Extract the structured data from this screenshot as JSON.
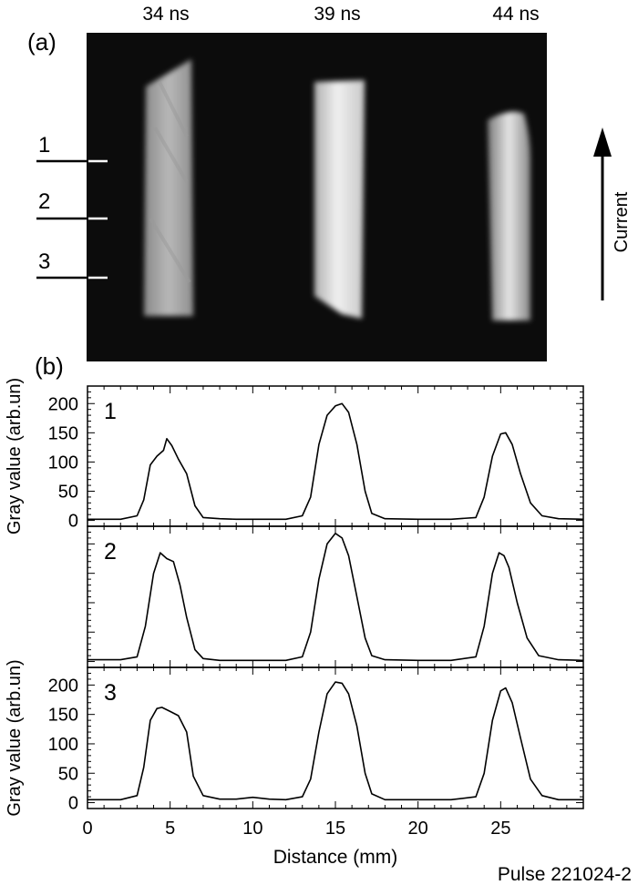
{
  "figure": {
    "panel_a_label": "(a)",
    "panel_b_label": "(b)",
    "frames": [
      {
        "time": "34 ns",
        "shape": "flat-top"
      },
      {
        "time": "39 ns",
        "shape": "flat-top"
      },
      {
        "time": "44 ns",
        "shape": "rounded-top"
      }
    ],
    "row_labels": [
      "1",
      "2",
      "3"
    ],
    "current_label": "Current",
    "footer": "Pulse 221024-2",
    "colors": {
      "background": "#000000",
      "emission": "#d8d8d8",
      "trace": "#000000",
      "frame_bg": "#0c0c0c"
    }
  },
  "chart_data": [
    {
      "type": "line",
      "panel_label": "1",
      "ylabel": "Gray value (arb.un)",
      "xlabel": "",
      "xlim": [
        0,
        30
      ],
      "ylim": [
        -10,
        230
      ],
      "xticks": [
        0,
        5,
        10,
        15,
        20,
        25
      ],
      "yticks": [
        0,
        50,
        100,
        150,
        200
      ],
      "show_yticklabels": true,
      "show_xticklabels": false,
      "series": [
        {
          "x": [
            0,
            2,
            3,
            3.4,
            3.8,
            4.2,
            4.6,
            4.8,
            5.1,
            5.5,
            6.0,
            6.5,
            7.0,
            8,
            9,
            10,
            11,
            12,
            13,
            13.5,
            14,
            14.5,
            15,
            15.4,
            15.8,
            16.3,
            16.8,
            17.2,
            18,
            20,
            22,
            23.5,
            24,
            24.5,
            25,
            25.3,
            25.7,
            26.2,
            26.8,
            27.5,
            28.5,
            30
          ],
          "y": [
            2,
            2,
            8,
            35,
            95,
            110,
            120,
            140,
            128,
            105,
            80,
            25,
            5,
            3,
            2,
            2,
            2,
            2,
            8,
            40,
            130,
            180,
            196,
            200,
            185,
            130,
            50,
            12,
            3,
            2,
            2,
            5,
            40,
            110,
            148,
            150,
            130,
            80,
            30,
            8,
            3,
            2
          ]
        }
      ]
    },
    {
      "type": "line",
      "panel_label": "2",
      "ylabel": "",
      "xlabel": "",
      "xlim": [
        0,
        30
      ],
      "ylim": [
        -10,
        230
      ],
      "xticks": [
        0,
        5,
        10,
        15,
        20,
        25
      ],
      "yticks": [
        0,
        50,
        100,
        150,
        200
      ],
      "show_yticklabels": false,
      "show_xticklabels": false,
      "series": [
        {
          "x": [
            0,
            2,
            3,
            3.5,
            4.0,
            4.4,
            4.8,
            5.2,
            5.6,
            6.0,
            6.5,
            7.0,
            8,
            10,
            12,
            13,
            13.5,
            14,
            14.5,
            15,
            15.4,
            15.8,
            16.3,
            16.8,
            17.2,
            18,
            20,
            22,
            23.5,
            24,
            24.5,
            24.9,
            25.2,
            25.5,
            26.0,
            26.6,
            27.3,
            28.5,
            30
          ],
          "y": [
            3,
            3,
            8,
            60,
            150,
            185,
            175,
            170,
            130,
            75,
            20,
            5,
            2,
            2,
            2,
            8,
            50,
            140,
            200,
            218,
            210,
            180,
            110,
            40,
            10,
            3,
            2,
            2,
            8,
            60,
            150,
            185,
            180,
            160,
            100,
            40,
            10,
            3,
            2
          ]
        }
      ]
    },
    {
      "type": "line",
      "panel_label": "3",
      "ylabel": "Gray value (arb.un)",
      "xlabel": "Distance (mm)",
      "xlim": [
        0,
        30
      ],
      "ylim": [
        -10,
        230
      ],
      "xticks": [
        0,
        5,
        10,
        15,
        20,
        25
      ],
      "yticks": [
        0,
        50,
        100,
        150,
        200
      ],
      "show_yticklabels": true,
      "show_xticklabels": true,
      "series": [
        {
          "x": [
            0,
            2,
            3,
            3.4,
            3.8,
            4.2,
            4.5,
            5.0,
            5.5,
            6.0,
            6.4,
            7.0,
            8,
            9,
            10,
            11,
            12,
            13,
            13.5,
            14,
            14.5,
            15,
            15.4,
            15.8,
            16.3,
            16.8,
            17.2,
            18,
            20,
            22,
            23.5,
            24,
            24.5,
            25,
            25.3,
            25.7,
            26.2,
            26.8,
            27.5,
            28.5,
            30
          ],
          "y": [
            5,
            5,
            12,
            60,
            140,
            160,
            162,
            155,
            148,
            120,
            45,
            12,
            6,
            6,
            9,
            6,
            5,
            10,
            40,
            120,
            185,
            205,
            203,
            185,
            130,
            50,
            15,
            5,
            5,
            5,
            10,
            50,
            140,
            190,
            195,
            170,
            110,
            40,
            12,
            5,
            5
          ]
        }
      ]
    }
  ]
}
